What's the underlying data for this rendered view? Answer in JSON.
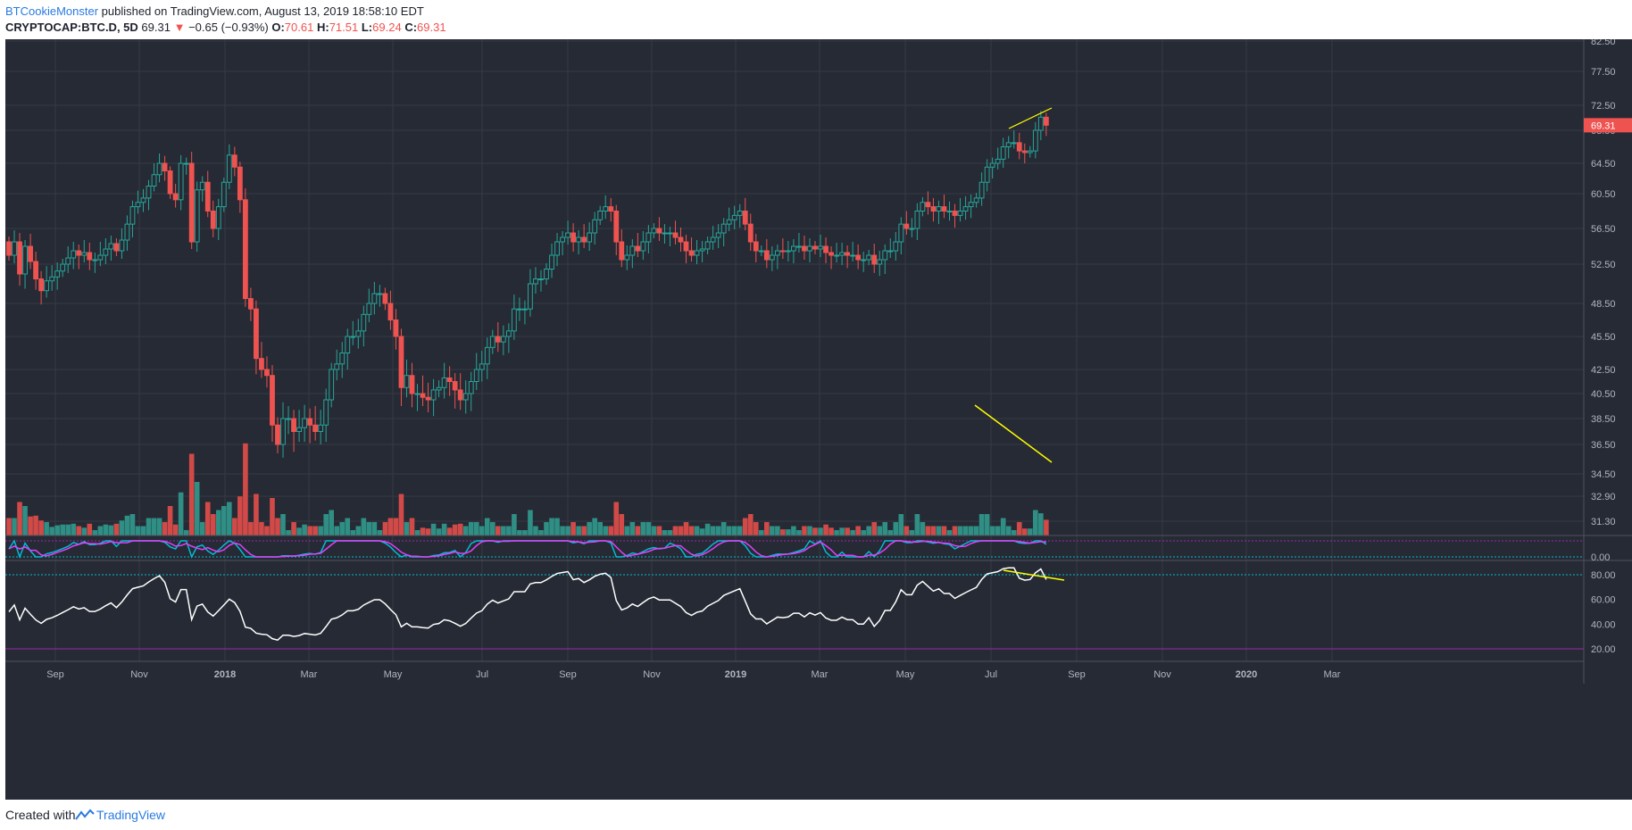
{
  "header": {
    "author": "BTCookieMonster",
    "published_text": " published on TradingView.com, August 13, 2019 18:58:10 EDT",
    "symbol": "CRYPTOCAP:BTC.D, 5D",
    "last": "69.31",
    "change_arrow": "▼",
    "change": "−0.65 (−0.93%)",
    "o_label": "O:",
    "o_val": "70.61",
    "h_label": "H:",
    "h_val": "71.51",
    "l_label": "L:",
    "l_val": "69.24",
    "c_label": "C:",
    "c_val": "69.31"
  },
  "footer": {
    "created": "Created with",
    "brand": "TradingView"
  },
  "colors": {
    "background": "#262a34",
    "grid": "#363a45",
    "up": "#26a69a",
    "down": "#ef5350",
    "vol_up": "#2f8f85",
    "vol_down": "#d24a48",
    "trendline": "#ffff00",
    "stoch_k": "#00bcd4",
    "stoch_d": "#e040fb",
    "rsi": "#ffffff",
    "last_price_tag": "#ef5350"
  },
  "chart_data": {
    "type": "candlestick",
    "price_axis_ticks": [
      "82.50",
      "77.50",
      "72.50",
      "68.50",
      "64.50",
      "60.50",
      "56.50",
      "52.50",
      "48.50",
      "45.50",
      "42.50",
      "40.50",
      "38.50",
      "36.50",
      "34.50",
      "32.90",
      "31.30"
    ],
    "last_price_label": "69.31",
    "stoch_axis_ticks": [
      "0.00"
    ],
    "rsi_axis_ticks": [
      "80.00",
      "60.00",
      "40.00",
      "20.00"
    ],
    "time_axis_labels": [
      "Sep",
      "Nov",
      "2018",
      "Mar",
      "May",
      "Jul",
      "Sep",
      "Nov",
      "2019",
      "Mar",
      "May",
      "Jul",
      "Sep",
      "Nov",
      "2020",
      "Mar"
    ],
    "bold_time_labels": [
      "2018",
      "2019",
      "2020"
    ],
    "candles_close": [
      53.5,
      55.0,
      51.5,
      54.5,
      52.8,
      51.0,
      49.8,
      50.8,
      51.2,
      51.8,
      52.5,
      53.2,
      54.0,
      53.5,
      53.8,
      53.0,
      53.0,
      53.5,
      54.2,
      54.8,
      54.0,
      55.2,
      57.0,
      59.0,
      59.5,
      60.0,
      61.5,
      63.0,
      64.5,
      63.5,
      60.5,
      59.8,
      64.5,
      64.5,
      55.0,
      61.0,
      62.0,
      58.5,
      56.5,
      59.0,
      62.0,
      65.5,
      64.0,
      59.8,
      49.0,
      48.0,
      43.5,
      42.5,
      42.0,
      38.0,
      36.5,
      38.5,
      38.5,
      37.5,
      37.8,
      38.5,
      38.0,
      37.5,
      38.0,
      40.0,
      42.5,
      43.0,
      44.0,
      45.5,
      45.5,
      46.0,
      47.5,
      48.5,
      49.5,
      49.5,
      48.5,
      47.0,
      45.5,
      41.0,
      42.0,
      40.5,
      40.5,
      40.2,
      40.0,
      40.8,
      41.0,
      41.8,
      41.5,
      40.8,
      40.0,
      40.5,
      41.5,
      42.5,
      43.0,
      44.5,
      45.5,
      45.0,
      45.5,
      46.0,
      48.0,
      48.0,
      48.0,
      50.5,
      51.0,
      51.0,
      52.0,
      53.5,
      55.0,
      55.5,
      56.0,
      55.0,
      55.5,
      55.0,
      56.0,
      57.5,
      58.5,
      59.0,
      58.5,
      55.0,
      53.0,
      53.5,
      54.5,
      54.0,
      55.0,
      56.0,
      56.5,
      56.0,
      56.0,
      56.0,
      55.5,
      55.0,
      54.0,
      53.5,
      54.0,
      54.2,
      55.0,
      55.5,
      56.0,
      57.0,
      57.5,
      58.0,
      58.5,
      57.0,
      55.0,
      54.0,
      54.0,
      53.0,
      53.5,
      54.0,
      53.9,
      54.0,
      54.5,
      54.5,
      54.0,
      54.5,
      54.2,
      54.5,
      53.8,
      53.5,
      53.5,
      53.8,
      53.5,
      53.5,
      53.0,
      53.0,
      53.5,
      52.5,
      53.0,
      54.0,
      54.0,
      55.0,
      57.0,
      56.5,
      56.5,
      58.5,
      59.5,
      59.0,
      58.5,
      59.0,
      58.5,
      58.5,
      58.0,
      58.5,
      59.0,
      59.5,
      60.0,
      62.0,
      64.0,
      64.5,
      65.0,
      66.5,
      67.0,
      67.0,
      66.0,
      65.8,
      66.0,
      68.5,
      70.6,
      69.31
    ],
    "rsi_last_approx": 72,
    "annotations": [
      "price higher-high trendline",
      "volume lower-high trendline",
      "RSI lower-high trendline"
    ]
  }
}
